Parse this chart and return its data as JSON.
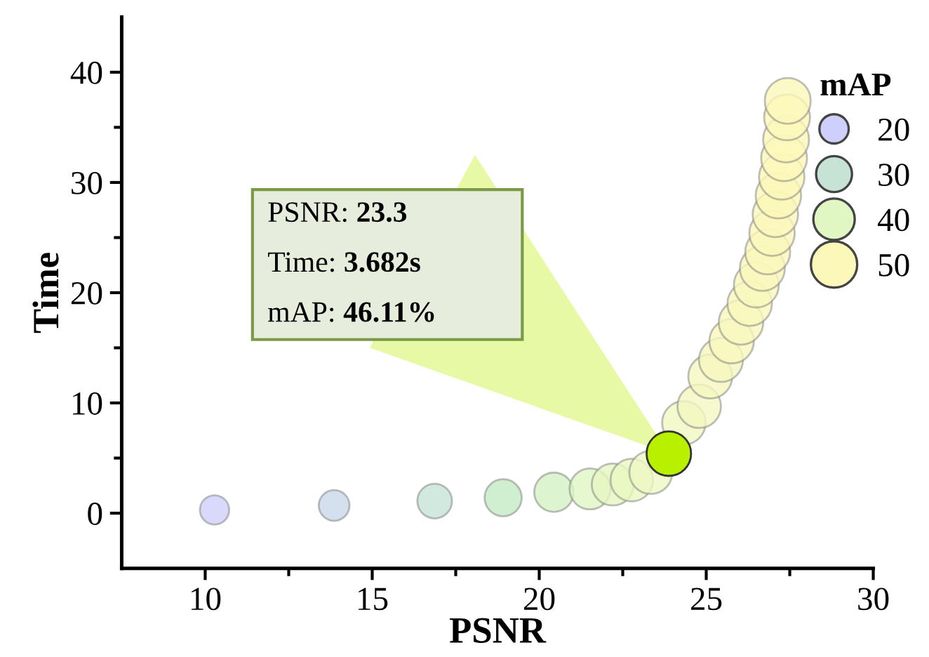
{
  "chart_data": {
    "type": "bubble",
    "xlabel": "PSNR",
    "ylabel": "Time",
    "legend_title": "mAP",
    "xlim": [
      7.5,
      30
    ],
    "ylim": [
      -5,
      45
    ],
    "xticks": [
      10,
      {
        "value": 12.5,
        "label": null
      },
      15,
      {
        "value": 17.5,
        "label": null
      },
      20,
      {
        "value": 22.5,
        "label": null
      },
      25,
      {
        "value": 27.5,
        "label": null
      },
      30
    ],
    "yticks": [
      0,
      {
        "value": 5,
        "label": null
      },
      10,
      {
        "value": 15,
        "label": null
      },
      20,
      {
        "value": 25,
        "label": null
      },
      30,
      {
        "value": 35,
        "label": null
      },
      40
    ],
    "size_legend": [
      20,
      30,
      40,
      50
    ],
    "series": [
      {
        "x": [
          10.28,
          13.86,
          16.87,
          18.92,
          20.44,
          21.52,
          22.2,
          22.77,
          23.34,
          24.33,
          24.79,
          25.12,
          25.44,
          25.76,
          26.04,
          26.3,
          26.5,
          26.68,
          26.84,
          26.97,
          27.07,
          27.16,
          27.26,
          27.33,
          27.39,
          27.42,
          27.44
        ],
        "values": [
          0.3,
          0.7,
          1.1,
          1.4,
          1.9,
          2.2,
          2.6,
          3.0,
          3.7,
          8.2,
          9.7,
          12.4,
          13.9,
          15.6,
          17.3,
          19.0,
          20.7,
          22.2,
          23.7,
          25.4,
          27.1,
          28.8,
          30.5,
          32.2,
          33.9,
          35.9,
          37.4
        ],
        "sizes": [
          20,
          22,
          28,
          32,
          36,
          39,
          41,
          42,
          43,
          44,
          44,
          45,
          45,
          46,
          46,
          46,
          47,
          47,
          47,
          48,
          48,
          48,
          48,
          49,
          49,
          49,
          49
        ],
        "colors": [
          "#cfcffb",
          "#c9d8ea",
          "#c6e3d6",
          "#c4ebc6",
          "#d3f3c4",
          "#e0f6c3",
          "#e6f6c2",
          "#eaf7c2",
          "#eef8c2",
          "#f1f8c2",
          "#f3f8c0",
          "#f5f8bf",
          "#f6f8be",
          "#f7f8bd",
          "#f8f8bd",
          "#f9f8bc",
          "#f9f8bb",
          "#faf8bb",
          "#faf8ba",
          "#fbf8ba",
          "#fbf8ba",
          "#fbf8b9",
          "#fbf8b9",
          "#fcf8b9",
          "#fcf8b9",
          "#fcf8b9",
          "#fcf8b9"
        ]
      },
      {
        "x": [
          23.88
        ],
        "values": [
          5.4
        ],
        "sizes": [
          46.11
        ],
        "color": "#b8f000"
      }
    ],
    "annotations": [
      "PSNR: 23.3",
      "Time: 3.682s",
      "mAP: 46.11%"
    ]
  }
}
